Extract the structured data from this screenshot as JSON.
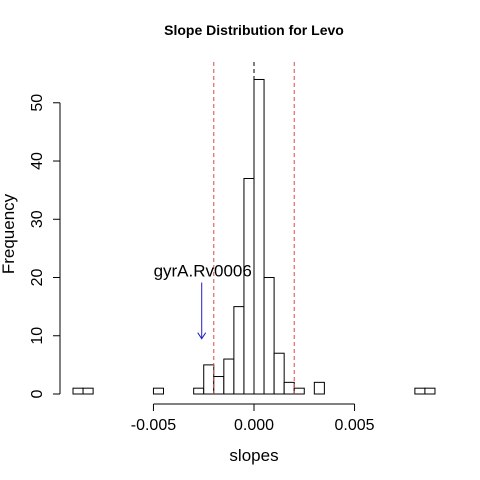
{
  "chart_data": {
    "type": "histogram",
    "title": "Slope Distribution for Levo",
    "xlabel": "slopes",
    "ylabel": "Frequency",
    "xlim": [
      -0.0091,
      0.0091
    ],
    "ylim": [
      0,
      57
    ],
    "x_ticks": [
      -0.005,
      0.0,
      0.005
    ],
    "x_tick_labels": [
      "-0.005",
      "0.000",
      "0.005"
    ],
    "y_ticks": [
      0,
      10,
      20,
      30,
      40,
      50
    ],
    "y_tick_labels": [
      "0",
      "10",
      "20",
      "30",
      "40",
      "50"
    ],
    "bin_width": 0.0005,
    "bins": [
      {
        "x0": -0.009,
        "x1": -0.0085,
        "count": 1
      },
      {
        "x0": -0.0085,
        "x1": -0.008,
        "count": 1
      },
      {
        "x0": -0.005,
        "x1": -0.0045,
        "count": 1
      },
      {
        "x0": -0.003,
        "x1": -0.0025,
        "count": 1
      },
      {
        "x0": -0.0025,
        "x1": -0.002,
        "count": 5
      },
      {
        "x0": -0.002,
        "x1": -0.0015,
        "count": 3
      },
      {
        "x0": -0.0015,
        "x1": -0.001,
        "count": 6
      },
      {
        "x0": -0.001,
        "x1": -0.0005,
        "count": 15
      },
      {
        "x0": -0.0005,
        "x1": 0.0,
        "count": 37
      },
      {
        "x0": 0.0,
        "x1": 0.0005,
        "count": 54
      },
      {
        "x0": 0.0005,
        "x1": 0.001,
        "count": 20
      },
      {
        "x0": 0.001,
        "x1": 0.0015,
        "count": 7
      },
      {
        "x0": 0.0015,
        "x1": 0.002,
        "count": 2
      },
      {
        "x0": 0.002,
        "x1": 0.0025,
        "count": 1
      },
      {
        "x0": 0.003,
        "x1": 0.0035,
        "count": 2
      },
      {
        "x0": 0.008,
        "x1": 0.0085,
        "count": 1
      },
      {
        "x0": 0.0085,
        "x1": 0.009,
        "count": 1
      }
    ],
    "reference_lines": [
      {
        "x": -0.002,
        "style": "dashed",
        "color": "#e0474c"
      },
      {
        "x": 0.002,
        "style": "dashed",
        "color": "#e0474c"
      },
      {
        "x": 0.0,
        "style": "dashed",
        "color": "#000000"
      }
    ],
    "annotation": {
      "text": "gyrA.Rv0006",
      "arrow_x": -0.0026,
      "arrow_from_y": 20,
      "arrow_to_y": 9.5,
      "arrow_color": "#1f1fbf"
    },
    "grid": false,
    "legend": "none"
  }
}
